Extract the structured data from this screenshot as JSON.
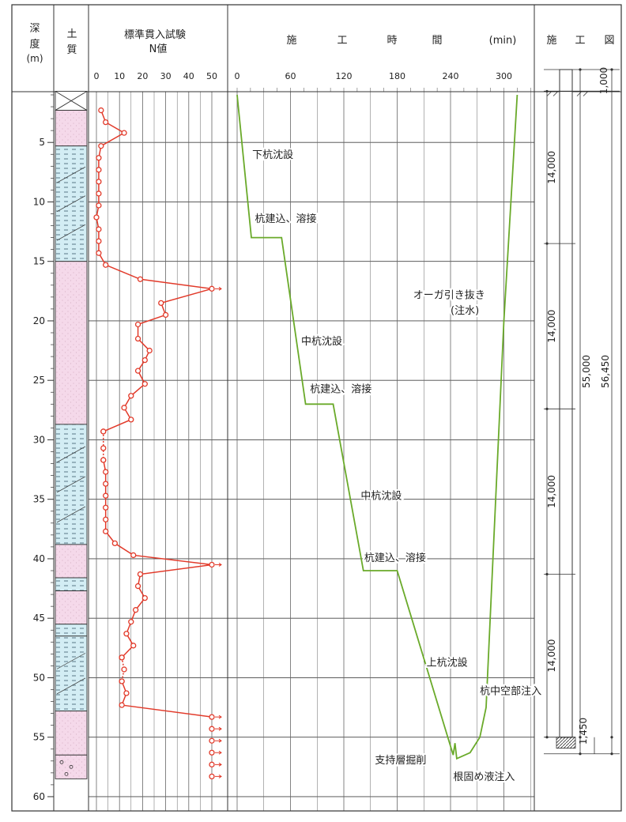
{
  "header": {
    "depth": [
      "深",
      "度",
      "(m)"
    ],
    "soil": [
      "土",
      "質"
    ],
    "spt_title": "標準貫入試験",
    "spt_subtitle": "N値",
    "time_title": [
      "施",
      "工",
      "時",
      "間",
      "(min)"
    ],
    "diagram_title": [
      "施",
      "工",
      "図"
    ]
  },
  "colors": {
    "frame": "#333333",
    "spt": "#e23a2a",
    "time": "#6aaa2a",
    "sand": "#f5d9ea",
    "clay": "#d3edf4"
  },
  "chart_data": [
    {
      "type": "line",
      "name": "spt",
      "xlabel": "N値",
      "xlim": [
        0,
        50
      ],
      "x_ticks": [
        0,
        10,
        20,
        30,
        40,
        50
      ],
      "depth_lim": [
        0,
        60
      ],
      "depth_ticks": [
        5,
        10,
        15,
        20,
        25,
        30,
        35,
        40,
        45,
        50,
        55,
        60
      ],
      "series": [
        {
          "values": [
            {
              "N": 2,
              "d": 2.3
            },
            {
              "N": 4,
              "d": 3.3
            },
            {
              "N": 12,
              "d": 4.2
            },
            {
              "N": 2,
              "d": 5.3
            },
            {
              "N": 1,
              "d": 6.3
            },
            {
              "N": 1,
              "d": 7.3
            },
            {
              "N": 1,
              "d": 8.3
            },
            {
              "N": 1,
              "d": 9.3
            },
            {
              "N": 1,
              "d": 10.3
            },
            {
              "N": 0,
              "d": 11.3
            },
            {
              "N": 1,
              "d": 12.3
            },
            {
              "N": 1,
              "d": 13.3
            },
            {
              "N": 1,
              "d": 14.3
            },
            {
              "N": 4,
              "d": 15.3
            },
            {
              "N": 19,
              "d": 16.5
            },
            {
              "N": 50,
              "d": 17.3,
              "over": true
            },
            {
              "N": 28,
              "d": 18.5
            },
            {
              "N": 30,
              "d": 19.5
            },
            {
              "N": 18,
              "d": 20.3
            },
            {
              "N": 18,
              "d": 21.5
            },
            {
              "N": 23,
              "d": 22.5
            },
            {
              "N": 21,
              "d": 23.3
            },
            {
              "N": 18,
              "d": 24.2
            },
            {
              "N": 21,
              "d": 25.3
            },
            {
              "N": 15,
              "d": 26.3
            },
            {
              "N": 12,
              "d": 27.3
            },
            {
              "N": 15,
              "d": 28.3
            },
            {
              "N": 3,
              "d": 29.3
            }
          ]
        },
        {
          "style": "dotted",
          "values": [
            {
              "N": 3,
              "d": 29.3
            },
            {
              "N": 3,
              "d": 30.7
            },
            {
              "N": 3,
              "d": 31.7
            }
          ]
        },
        {
          "values": [
            {
              "N": 3,
              "d": 31.7
            },
            {
              "N": 4,
              "d": 32.7
            },
            {
              "N": 4,
              "d": 33.7
            },
            {
              "N": 4,
              "d": 34.7
            },
            {
              "N": 4,
              "d": 35.7
            },
            {
              "N": 4,
              "d": 36.7
            },
            {
              "N": 4,
              "d": 37.7
            },
            {
              "N": 8,
              "d": 38.7
            },
            {
              "N": 16,
              "d": 39.7
            },
            {
              "N": 50,
              "d": 40.5,
              "over": true
            },
            {
              "N": 19,
              "d": 41.3
            },
            {
              "N": 18,
              "d": 42.3
            },
            {
              "N": 21,
              "d": 43.3
            },
            {
              "N": 17,
              "d": 44.3
            },
            {
              "N": 15,
              "d": 45.3
            },
            {
              "N": 13,
              "d": 46.3
            },
            {
              "N": 16,
              "d": 47.3
            },
            {
              "N": 11,
              "d": 48.3
            }
          ]
        },
        {
          "style": "dotted",
          "values": [
            {
              "N": 11,
              "d": 48.3
            },
            {
              "N": 12,
              "d": 49.3
            },
            {
              "N": 11,
              "d": 50.3
            }
          ]
        },
        {
          "values": [
            {
              "N": 11,
              "d": 50.3
            },
            {
              "N": 13,
              "d": 51.3
            },
            {
              "N": 11,
              "d": 52.3
            },
            {
              "N": 50,
              "d": 53.3,
              "over": true
            }
          ]
        },
        {
          "style": "none",
          "values": [
            {
              "N": 50,
              "d": 54.3,
              "over": true
            },
            {
              "N": 50,
              "d": 55.3,
              "over": true
            },
            {
              "N": 50,
              "d": 56.3,
              "over": true
            },
            {
              "N": 50,
              "d": 57.3,
              "over": true
            },
            {
              "N": 50,
              "d": 58.3,
              "over": true
            }
          ]
        }
      ]
    },
    {
      "type": "line",
      "name": "time",
      "xlabel": "施工時間 (min)",
      "xlim": [
        0,
        330
      ],
      "x_ticks": [
        0,
        60,
        120,
        180,
        240,
        300
      ],
      "series": [
        {
          "values": [
            {
              "t": 0,
              "d": 1.0
            },
            {
              "t": 16,
              "d": 13.0
            },
            {
              "t": 50,
              "d": 13.0
            },
            {
              "t": 77,
              "d": 27.0
            },
            {
              "t": 108,
              "d": 27.0
            },
            {
              "t": 142,
              "d": 41.0
            },
            {
              "t": 180,
              "d": 41.0
            },
            {
              "t": 243,
              "d": 56.5
            },
            {
              "t": 245,
              "d": 55.5
            },
            {
              "t": 247,
              "d": 56.8
            },
            {
              "t": 262,
              "d": 56.3
            },
            {
              "t": 273,
              "d": 55.0
            },
            {
              "t": 280,
              "d": 52.5
            },
            {
              "t": 300,
              "d": 20.0
            },
            {
              "t": 315,
              "d": 1.0
            }
          ]
        }
      ],
      "annotations": [
        {
          "text": "下杭沈設",
          "t": 17,
          "d": 6.3
        },
        {
          "text": "杭建込、溶接",
          "t": 20,
          "d": 11.7
        },
        {
          "text": "中杭沈設",
          "t": 72,
          "d": 22.0
        },
        {
          "text": "杭建込、溶接",
          "t": 82,
          "d": 26.0
        },
        {
          "text": "中杭沈設",
          "t": 139,
          "d": 35.0
        },
        {
          "text": "杭建込、溶接",
          "t": 143,
          "d": 40.2
        },
        {
          "text": "上杭沈設",
          "t": 213,
          "d": 49.0
        },
        {
          "text": "オーガ引き抜き",
          "t": 198,
          "d": 18.1
        },
        {
          "text": "(注水)",
          "t": 240,
          "d": 19.4
        },
        {
          "text": "杭中空部注入",
          "t": 273,
          "d": 51.4
        },
        {
          "text": "支持層掘削",
          "t": 155,
          "d": 57.2
        },
        {
          "text": "根固め液注入",
          "t": 243,
          "d": 58.6
        }
      ]
    }
  ],
  "soil_layers": [
    {
      "top": 0.7,
      "bottom": 2.3,
      "type": "fill"
    },
    {
      "top": 2.3,
      "bottom": 5.3,
      "type": "sand"
    },
    {
      "top": 5.3,
      "bottom": 15.0,
      "type": "clay"
    },
    {
      "top": 15.0,
      "bottom": 28.7,
      "type": "sand"
    },
    {
      "top": 28.7,
      "bottom": 38.8,
      "type": "clay"
    },
    {
      "top": 38.8,
      "bottom": 41.6,
      "type": "sand"
    },
    {
      "top": 41.6,
      "bottom": 42.7,
      "type": "clay"
    },
    {
      "top": 42.7,
      "bottom": 45.5,
      "type": "sand"
    },
    {
      "top": 45.5,
      "bottom": 46.5,
      "type": "clay"
    },
    {
      "top": 46.5,
      "bottom": 52.8,
      "type": "clay"
    },
    {
      "top": 52.8,
      "bottom": 56.5,
      "type": "sand"
    },
    {
      "top": 56.5,
      "bottom": 58.5,
      "type": "gravel"
    }
  ],
  "construction_diagram": {
    "top_label": "1,000",
    "segments": [
      {
        "label": "14,000",
        "from": 0.7,
        "to": 13.5
      },
      {
        "label": "14,000",
        "from": 13.5,
        "to": 27.4
      },
      {
        "label": "14,000",
        "from": 27.4,
        "to": 41.3
      },
      {
        "label": "14,000",
        "from": 41.3,
        "to": 55.0
      }
    ],
    "total_label": "55,000",
    "overall_label": "56,450",
    "bottom_label": "1,450"
  }
}
